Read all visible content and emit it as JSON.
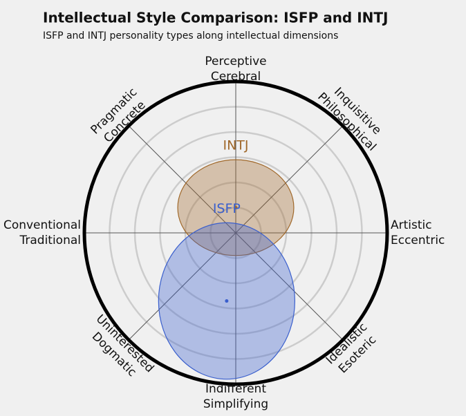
{
  "chart_data": {
    "type": "ellipse",
    "title": "Intellectual Style Comparison: ISFP and INTJ",
    "subtitle": "ISFP and INTJ personality types along intellectual dimensions",
    "directions": [
      [
        "Perceptive",
        "Cerebral"
      ],
      [
        "Inquisitive",
        "Philosophical"
      ],
      [
        "Artistic",
        "Eccentric"
      ],
      [
        "Idealistic",
        "Esoteric"
      ],
      [
        "Indifferent",
        "Simplifying"
      ],
      [
        "Uninterested",
        "Dogmatic"
      ],
      [
        "Conventional",
        "Traditional"
      ],
      [
        "Pragmatic",
        "Concrete"
      ]
    ],
    "rlim": [
      0,
      6
    ],
    "rticks": [
      1,
      2,
      3,
      4,
      5
    ],
    "grid": true,
    "series": [
      {
        "name": "INTJ",
        "color": "#a0682a",
        "x": 0,
        "y": 1.0,
        "rx": 2.3,
        "ry": 1.9
      },
      {
        "name": "ISFP",
        "color": "#3a5fcd",
        "x": -0.36,
        "y": -2.7,
        "rx": 2.7,
        "ry": 3.1
      }
    ]
  }
}
